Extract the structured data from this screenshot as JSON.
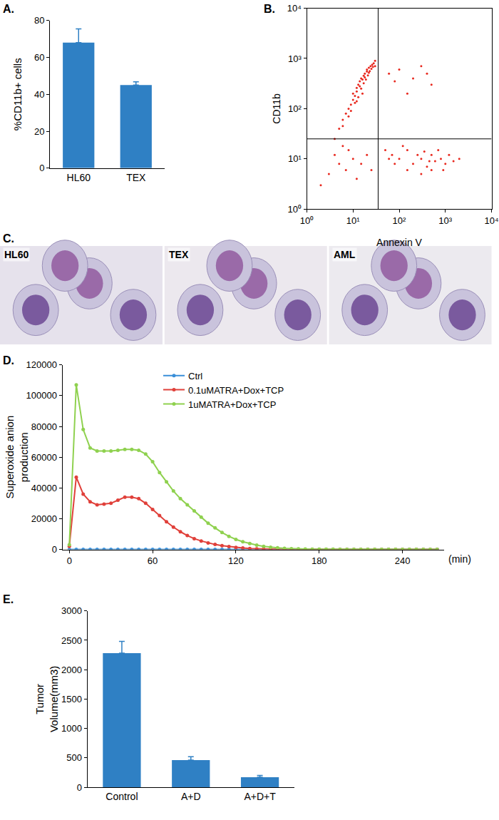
{
  "chart_data": [
    {
      "label": "A.",
      "type": "bar",
      "categories": [
        "HL60",
        "TEX"
      ],
      "values": [
        68,
        45
      ],
      "errors": [
        7.5,
        1.8
      ],
      "color": "#2f80c4",
      "ylabel": [
        "%CD11b+ cells"
      ],
      "ylim": [
        0,
        80
      ],
      "yticks": [
        0,
        20,
        40,
        60,
        80
      ],
      "grid": false
    },
    {
      "label": "B.",
      "type": "scatter",
      "log": true,
      "color": "#e8281e",
      "marker": "dot",
      "xlabel": "Annexin V",
      "ylabel": [
        "CD11b"
      ],
      "x": [
        4,
        5,
        6,
        7,
        8,
        9,
        10,
        10,
        11,
        12,
        12,
        13,
        14,
        14,
        15,
        16,
        17,
        18,
        18,
        20,
        20,
        22,
        22,
        24,
        25,
        26,
        28,
        30,
        30,
        8,
        9,
        11,
        13,
        15,
        17,
        19,
        21,
        23,
        27,
        6,
        12,
        16,
        60,
        100,
        200,
        300,
        500,
        150,
        80,
        400,
        50,
        70,
        100,
        150,
        200,
        250,
        300,
        400,
        500,
        600,
        800,
        1000,
        1200,
        150,
        300,
        500,
        700,
        900,
        120,
        80,
        60,
        350,
        450,
        1500,
        2000,
        3,
        5,
        7,
        4,
        10,
        15,
        20,
        8,
        2,
        25,
        12,
        6
      ],
      "y": [
        25,
        40,
        60,
        80,
        100,
        120,
        150,
        200,
        180,
        220,
        260,
        300,
        280,
        350,
        400,
        380,
        450,
        500,
        420,
        550,
        600,
        650,
        520,
        700,
        620,
        750,
        800,
        700,
        900,
        70,
        90,
        130,
        170,
        250,
        320,
        380,
        460,
        560,
        680,
        45,
        140,
        200,
        500,
        600,
        400,
        700,
        300,
        200,
        350,
        500,
        15,
        12,
        10,
        15,
        8,
        12,
        10,
        7,
        12,
        9,
        10,
        8,
        12,
        6,
        5,
        6,
        15,
        6,
        18,
        8,
        10,
        14,
        9,
        9,
        10,
        5,
        8,
        6,
        12,
        10,
        8,
        12,
        15,
        3,
        6,
        4,
        18
      ],
      "gates": {
        "x": 35,
        "y": 25
      },
      "xlim": [
        1,
        10000
      ],
      "ylim": [
        1,
        10000
      ],
      "xticks": [
        {
          "value": 1,
          "label": "10⁰"
        },
        {
          "value": 10,
          "label": "10¹"
        },
        {
          "value": 100,
          "label": "10²"
        },
        {
          "value": 1000,
          "label": "10³"
        },
        {
          "value": 10000,
          "label": "10⁴"
        }
      ],
      "yticks": [
        {
          "value": 1,
          "label": "10⁰"
        },
        {
          "value": 10,
          "label": "10¹"
        },
        {
          "value": 100,
          "label": "10²"
        },
        {
          "value": 1000,
          "label": "10³"
        },
        {
          "value": 10000,
          "label": "10⁴"
        }
      ],
      "grid": false
    },
    {
      "label": "C.",
      "type": "image",
      "images": [
        "HL60",
        "TEX",
        "AML"
      ]
    },
    {
      "label": "D.",
      "type": "line",
      "marker": "circle",
      "legend": "top",
      "xlabel": "(min)",
      "ylabel": [
        "Superoxide anion",
        "production"
      ],
      "x": [
        0,
        5,
        10,
        15,
        20,
        25,
        30,
        35,
        40,
        45,
        50,
        55,
        60,
        65,
        70,
        75,
        80,
        85,
        90,
        95,
        100,
        105,
        110,
        115,
        120,
        125,
        130,
        135,
        140,
        145,
        150,
        155,
        160,
        165,
        170,
        175,
        180,
        185,
        190,
        195,
        200,
        205,
        210,
        215,
        220,
        225,
        230,
        235,
        240,
        245,
        250,
        255,
        260,
        265
      ],
      "series": [
        {
          "name": "Ctrl",
          "color": "#3a8fd8",
          "values": [
            0,
            0,
            0,
            0,
            0,
            0,
            0,
            0,
            0,
            0,
            0,
            0,
            0,
            0,
            0,
            0,
            0,
            0,
            0,
            0,
            0,
            0,
            0,
            0,
            0,
            0,
            0,
            0,
            0,
            0,
            0,
            0,
            0,
            0,
            0,
            0,
            0,
            0,
            0,
            0,
            0,
            0,
            0,
            0,
            0,
            0,
            0,
            0,
            0,
            0,
            0,
            0,
            0,
            0
          ]
        },
        {
          "name": "0.1uMATRA+Dox+TCP",
          "color": "#e0403a",
          "values": [
            2000,
            47000,
            36000,
            31000,
            29000,
            29500,
            30000,
            32000,
            34000,
            34000,
            33000,
            30000,
            26000,
            22000,
            18000,
            14500,
            11500,
            9000,
            7000,
            5500,
            4200,
            3200,
            2400,
            1800,
            1300,
            900,
            600,
            400,
            250,
            150,
            100,
            60,
            30,
            10,
            0,
            0,
            0,
            0,
            0,
            0,
            0,
            0,
            0,
            0,
            0,
            0,
            0,
            0,
            0,
            0,
            0,
            0,
            0,
            0
          ]
        },
        {
          "name": "1uMATRA+Dox+TCP",
          "color": "#8fd14f",
          "values": [
            3000,
            107000,
            78000,
            66000,
            64000,
            64000,
            64000,
            64500,
            65000,
            65000,
            64500,
            62000,
            57000,
            50000,
            44000,
            38000,
            33000,
            29000,
            25000,
            21000,
            17000,
            14000,
            11000,
            8500,
            6500,
            5000,
            3800,
            2800,
            2000,
            1400,
            1000,
            700,
            500,
            300,
            200,
            150,
            100,
            80,
            60,
            40,
            30,
            20,
            10,
            0,
            0,
            0,
            0,
            0,
            0,
            0,
            0,
            0,
            0,
            0
          ]
        }
      ],
      "xlim": [
        -5,
        270
      ],
      "xticks": [
        0,
        60,
        120,
        180,
        240
      ],
      "ylim": [
        0,
        120000
      ],
      "yticks": [
        0,
        20000,
        40000,
        60000,
        80000,
        100000,
        120000
      ],
      "grid": false
    },
    {
      "label": "E.",
      "type": "bar",
      "categories": [
        "Control",
        "A+D",
        "A+D+T"
      ],
      "values": [
        2280,
        460,
        170
      ],
      "errors": [
        200,
        60,
        30
      ],
      "color": "#2f80c4",
      "ylabel": [
        "Tumor",
        "Volume(mm3)"
      ],
      "ylim": [
        0,
        3000
      ],
      "yticks": [
        0,
        500,
        1000,
        1500,
        2000,
        2500,
        3000
      ],
      "grid": false
    }
  ]
}
